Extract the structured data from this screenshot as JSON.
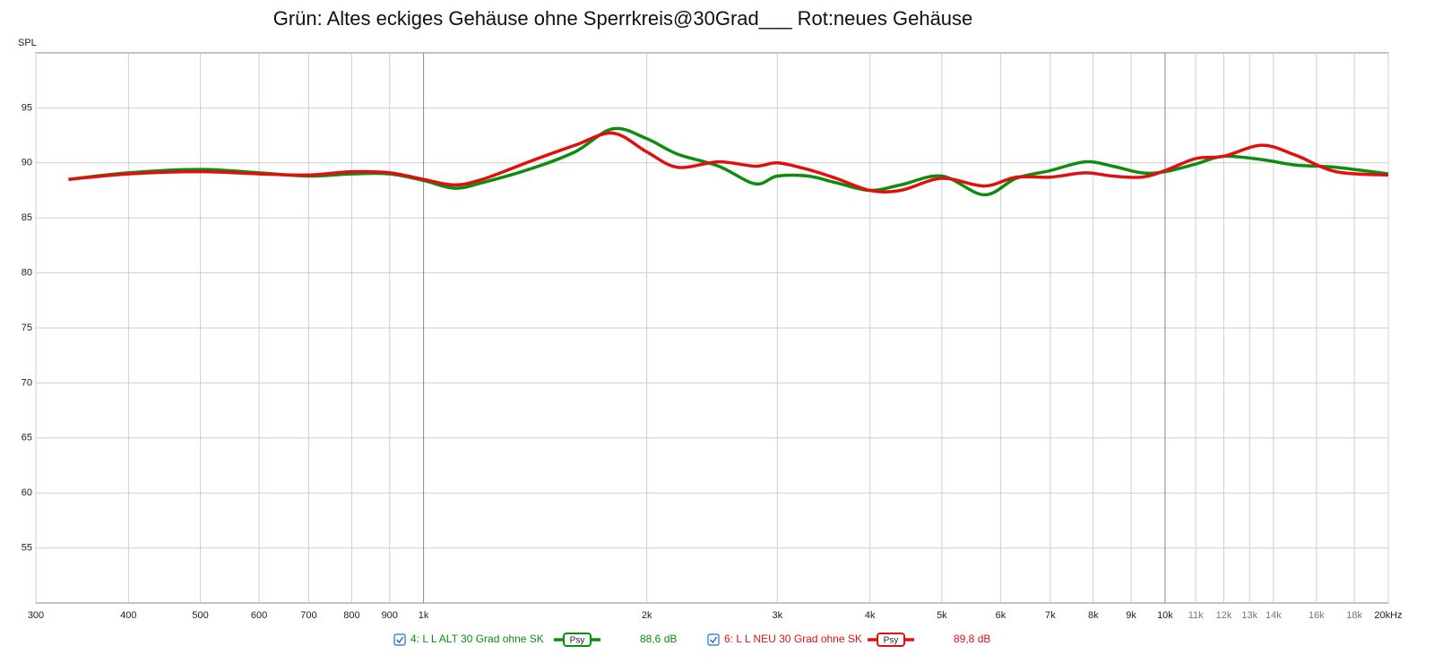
{
  "chart_data": {
    "type": "line",
    "title": "Grün: Altes eckiges Gehäuse ohne Sperrkreis@30Grad___ Rot:neues Gehäuse",
    "ylabel": "SPL",
    "xscale": "log",
    "grid": true,
    "x": [
      332,
      400,
      500,
      600,
      700,
      800,
      900,
      1000,
      1100,
      1200,
      1400,
      1600,
      1800,
      2000,
      2200,
      2500,
      2800,
      3000,
      3300,
      3600,
      4000,
      4400,
      5000,
      5700,
      6300,
      7000,
      7800,
      8500,
      9300,
      10000,
      11000,
      12000,
      13500,
      15000,
      17000,
      20000
    ],
    "series": [
      {
        "name": "4: L L ALT 30 Grad ohne SK",
        "smoothing": "Psy",
        "level": "88,6 dB",
        "color": "#0f8c0f",
        "values": [
          88.5,
          89.1,
          89.4,
          89.1,
          88.8,
          89.0,
          89.0,
          88.4,
          87.7,
          88.2,
          89.5,
          91.0,
          93.1,
          92.2,
          90.8,
          89.7,
          88.1,
          88.8,
          88.8,
          88.2,
          87.5,
          88.0,
          88.8,
          87.1,
          88.6,
          89.3,
          90.1,
          89.7,
          89.1,
          89.2,
          89.9,
          90.6,
          90.3,
          89.8,
          89.6,
          89.0
        ]
      },
      {
        "name": "6: L L NEU 30 Grad ohne SK",
        "smoothing": "Psy",
        "level": "89,8 dB",
        "color": "#e01010",
        "values": [
          88.5,
          89.0,
          89.2,
          89.0,
          88.9,
          89.2,
          89.1,
          88.5,
          88.0,
          88.5,
          90.2,
          91.6,
          92.7,
          91.0,
          89.6,
          90.1,
          89.7,
          90.0,
          89.4,
          88.6,
          87.5,
          87.5,
          88.6,
          87.9,
          88.7,
          88.7,
          89.1,
          88.8,
          88.7,
          89.3,
          90.4,
          90.6,
          91.6,
          90.7,
          89.2,
          88.9
        ]
      }
    ],
    "xlim": [
      300,
      20000
    ],
    "xticks": [
      300,
      400,
      500,
      600,
      700,
      800,
      900,
      {
        "value": 1000,
        "label": "1k"
      },
      {
        "value": 2000,
        "label": "2k"
      },
      {
        "value": 3000,
        "label": "3k"
      },
      {
        "value": 4000,
        "label": "4k"
      },
      {
        "value": 5000,
        "label": "5k"
      },
      {
        "value": 6000,
        "label": "6k"
      },
      {
        "value": 7000,
        "label": "7k"
      },
      {
        "value": 8000,
        "label": "8k"
      },
      {
        "value": 9000,
        "label": "9k"
      },
      {
        "value": 10000,
        "label": "10k"
      },
      {
        "value": 11000,
        "label": "11k"
      },
      {
        "value": 12000,
        "label": "12k"
      },
      {
        "value": 13000,
        "label": "13k"
      },
      {
        "value": 14000,
        "label": "14k"
      },
      {
        "value": 16000,
        "label": "16k"
      },
      {
        "value": 18000,
        "label": "18k"
      },
      {
        "value": 20000,
        "label": "20kHz"
      }
    ],
    "ylim": [
      50,
      100
    ],
    "yticks": [
      55,
      60,
      65,
      70,
      75,
      80,
      85,
      90,
      95
    ]
  }
}
